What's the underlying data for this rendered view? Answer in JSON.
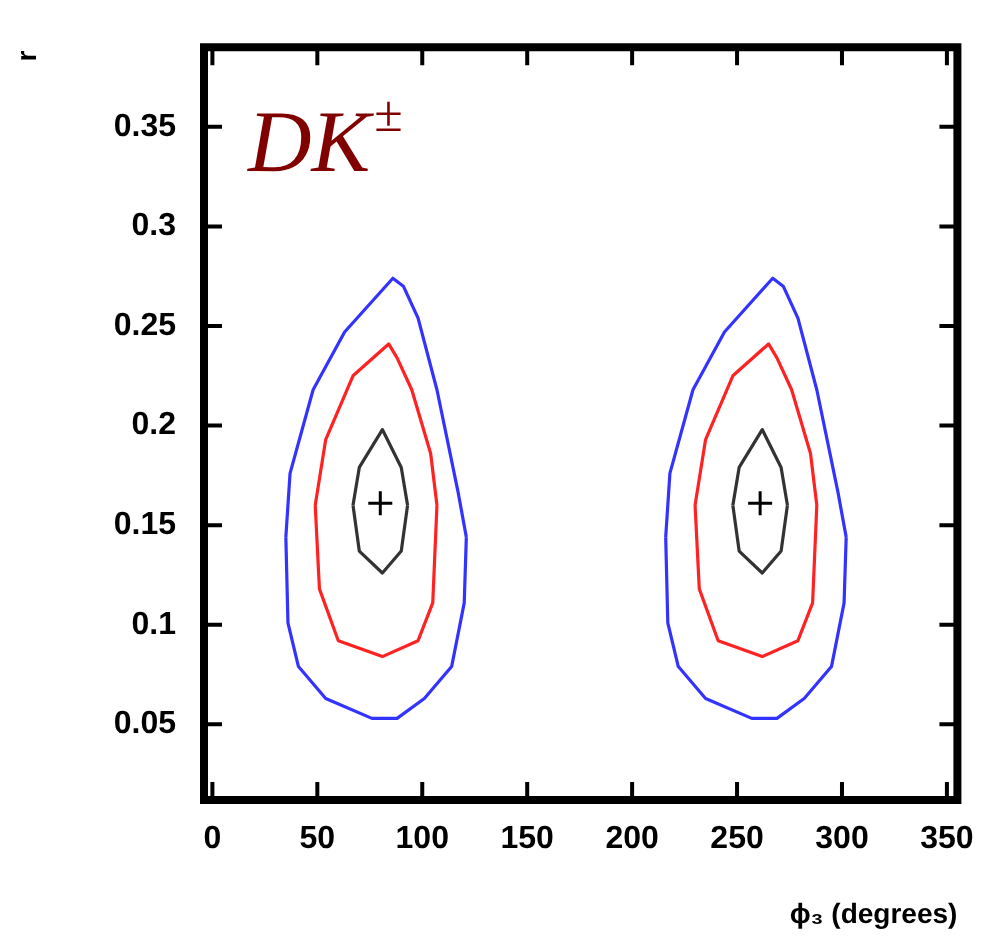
{
  "chart_data": {
    "type": "line",
    "xlabel": "ϕ₃ (degrees)",
    "ylabel": "r",
    "annotations": [
      "DK$^{±}$"
    ],
    "xlim": [
      -4,
      355
    ],
    "ylim": [
      0.012,
      0.39
    ],
    "xticks": [
      0,
      50,
      100,
      150,
      200,
      250,
      300,
      350
    ],
    "yticks": [
      0.05,
      0.1,
      0.15,
      0.2,
      0.25,
      0.3,
      0.35
    ],
    "grid": false,
    "legend": false,
    "marker": "none",
    "series": [
      {
        "color": "#3333ff",
        "x": [
          35,
          37,
          48,
          63,
          86,
          91,
          98,
          107,
          117,
          121,
          null,
          35,
          36,
          41,
          54,
          76,
          88,
          101,
          114,
          120,
          121
        ],
        "values": [
          0.144,
          0.176,
          0.218,
          0.247,
          0.274,
          0.27,
          0.254,
          0.218,
          0.167,
          0.144,
          null,
          0.144,
          0.101,
          0.079,
          0.063,
          0.053,
          0.053,
          0.063,
          0.079,
          0.111,
          0.144
        ]
      },
      {
        "color": "#ff2222",
        "x": [
          49,
          54,
          67,
          84,
          88,
          95,
          104,
          107,
          null,
          49,
          51,
          60,
          81,
          98,
          105,
          107
        ],
        "values": [
          0.16,
          0.193,
          0.225,
          0.241,
          0.234,
          0.218,
          0.186,
          0.16,
          null,
          0.16,
          0.118,
          0.092,
          0.084,
          0.092,
          0.111,
          0.16
        ]
      },
      {
        "color": "#333333",
        "x": [
          67,
          70,
          81,
          90,
          93,
          null,
          67,
          70,
          81,
          90,
          93
        ],
        "values": [
          0.16,
          0.179,
          0.198,
          0.179,
          0.16,
          null,
          0.16,
          0.137,
          0.126,
          0.137,
          0.16
        ]
      },
      {
        "color": "#3333ff",
        "x": [
          216,
          218,
          229,
          244,
          267,
          272,
          279,
          288,
          298,
          302,
          null,
          216,
          217,
          222,
          235,
          257,
          269,
          282,
          295,
          301,
          302
        ],
        "values": [
          0.144,
          0.176,
          0.218,
          0.247,
          0.274,
          0.27,
          0.254,
          0.218,
          0.167,
          0.144,
          null,
          0.144,
          0.101,
          0.079,
          0.063,
          0.053,
          0.053,
          0.063,
          0.079,
          0.111,
          0.144
        ]
      },
      {
        "color": "#ff2222",
        "x": [
          230,
          235,
          248,
          265,
          269,
          276,
          285,
          288,
          null,
          230,
          232,
          241,
          262,
          279,
          286,
          288
        ],
        "values": [
          0.16,
          0.193,
          0.225,
          0.241,
          0.234,
          0.218,
          0.186,
          0.16,
          null,
          0.16,
          0.118,
          0.092,
          0.084,
          0.092,
          0.111,
          0.16
        ]
      },
      {
        "color": "#333333",
        "x": [
          248,
          251,
          262,
          271,
          274,
          null,
          248,
          251,
          262,
          271,
          274
        ],
        "values": [
          0.16,
          0.179,
          0.198,
          0.179,
          0.16,
          null,
          0.16,
          0.137,
          0.126,
          0.137,
          0.16
        ]
      },
      {
        "type": "scatter",
        "marker": "cross",
        "color": "#000000",
        "x": [
          80,
          261
        ],
        "values": [
          0.161,
          0.161
        ]
      }
    ]
  }
}
